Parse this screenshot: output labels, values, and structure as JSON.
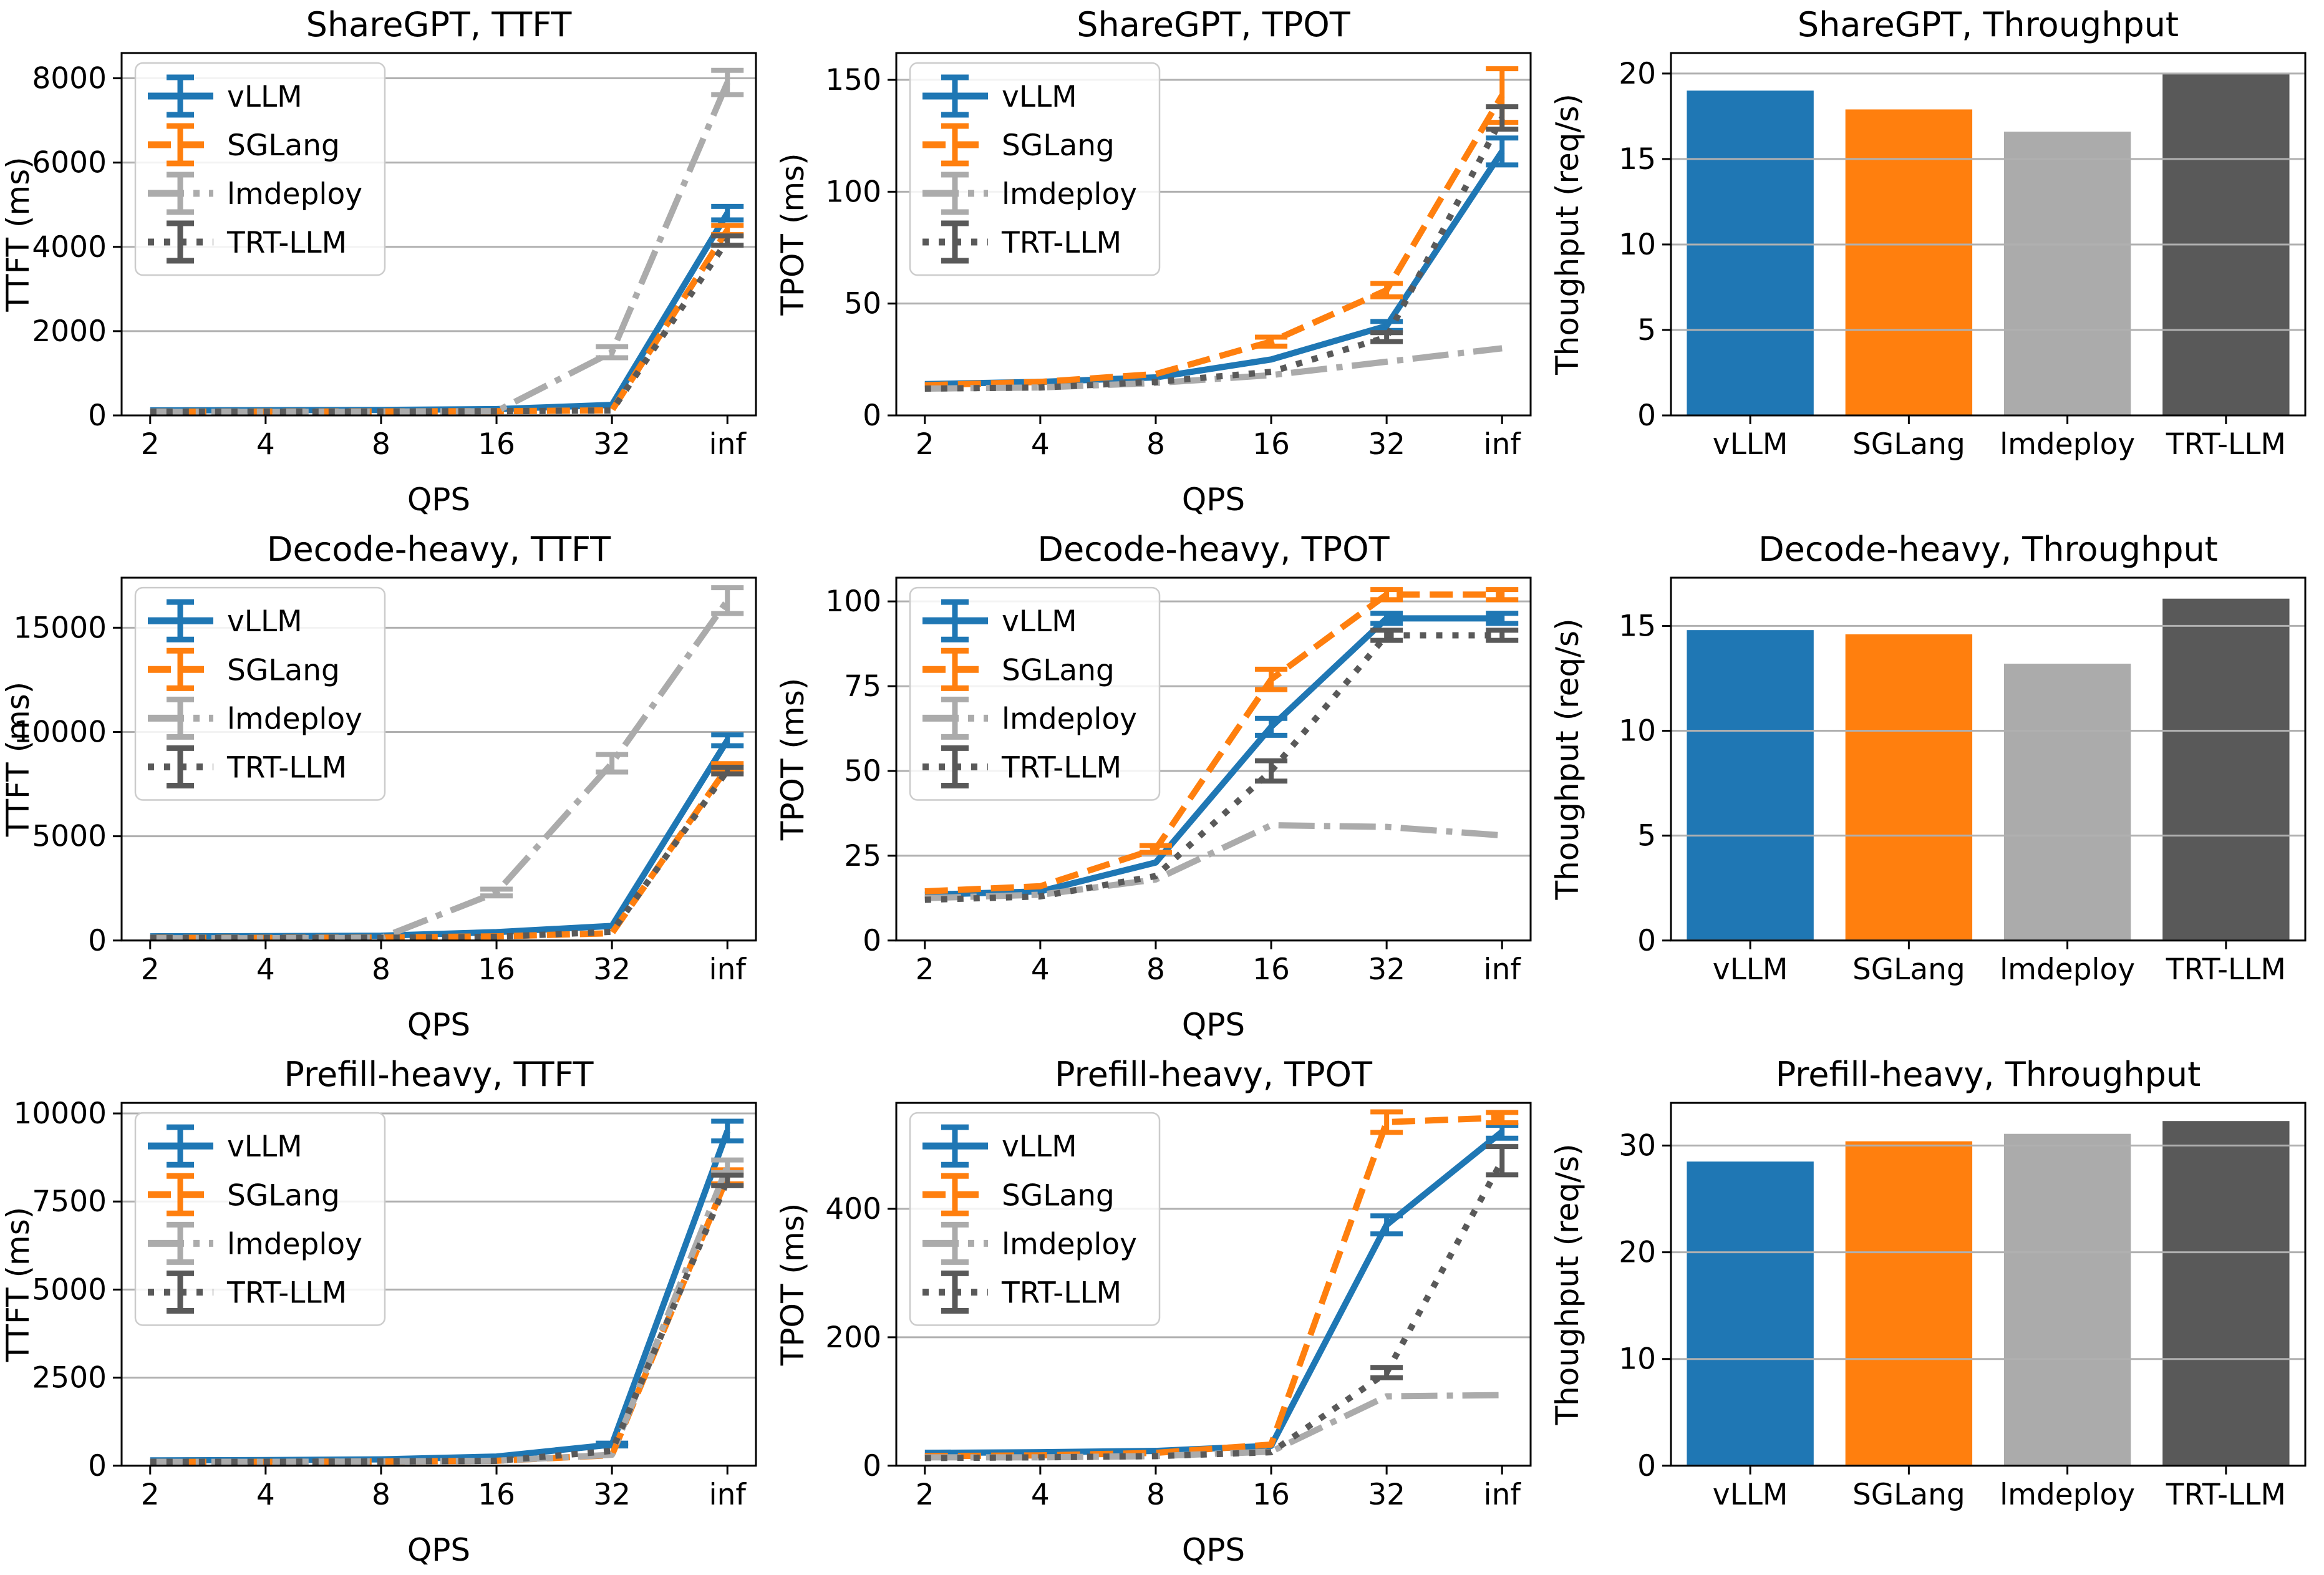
{
  "figure": {
    "background": "#ffffff"
  },
  "palette": {
    "vLLM": "#1f77b4",
    "SGLang": "#ff7f0e",
    "lmdeploy": "#ababab",
    "TRT-LLM": "#595959"
  },
  "styles": {
    "grid_color": "#b0b0b0",
    "spine_color": "#000000",
    "legend_border": "#cccccc",
    "legend_fill": "#ffffff",
    "dash": {
      "vLLM": "",
      "SGLang": "37 16",
      "lmdeploy": "58 15 10 15",
      "TRT-LLM": "10 16"
    }
  },
  "chart_data": [
    {
      "id": "sharegpt-ttft",
      "type": "line",
      "title": "ShareGPT, TTFT",
      "xlabel": "QPS",
      "ylabel": "TTFT (ms)",
      "x_ticklabels": [
        "2",
        "4",
        "8",
        "16",
        "32",
        "inf"
      ],
      "yticks": [
        0,
        2000,
        4000,
        6000,
        8000
      ],
      "ylim": [
        0,
        8600
      ],
      "grid": true,
      "legend_position": "upper-left",
      "legend": [
        "vLLM",
        "SGLang",
        "lmdeploy",
        "TRT-LLM"
      ],
      "series": [
        {
          "name": "vLLM",
          "values": [
            120,
            125,
            130,
            150,
            250,
            4800
          ],
          "errors": [
            0,
            0,
            0,
            0,
            0,
            160
          ]
        },
        {
          "name": "SGLang",
          "values": [
            90,
            92,
            95,
            100,
            120,
            4400
          ],
          "errors": [
            0,
            0,
            0,
            0,
            0,
            110
          ]
        },
        {
          "name": "lmdeploy",
          "values": [
            85,
            85,
            90,
            100,
            1500,
            7900
          ],
          "errors": [
            0,
            0,
            0,
            0,
            130,
            290
          ]
        },
        {
          "name": "TRT-LLM",
          "values": [
            88,
            88,
            92,
            100,
            115,
            4150
          ],
          "errors": [
            0,
            0,
            0,
            0,
            0,
            110
          ]
        }
      ]
    },
    {
      "id": "sharegpt-tpot",
      "type": "line",
      "title": "ShareGPT, TPOT",
      "xlabel": "QPS",
      "ylabel": "TPOT (ms)",
      "x_ticklabels": [
        "2",
        "4",
        "8",
        "16",
        "32",
        "inf"
      ],
      "yticks": [
        0,
        50,
        100,
        150
      ],
      "ylim": [
        0,
        162
      ],
      "grid": true,
      "legend_position": "upper-left",
      "legend": [
        "vLLM",
        "SGLang",
        "lmdeploy",
        "TRT-LLM"
      ],
      "series": [
        {
          "name": "vLLM",
          "values": [
            14,
            15,
            17,
            25,
            40,
            118
          ],
          "errors": [
            0,
            0,
            0,
            0,
            2,
            6
          ]
        },
        {
          "name": "SGLang",
          "values": [
            13.5,
            15,
            18.5,
            33,
            56,
            143
          ],
          "errors": [
            0,
            0,
            0,
            2,
            3,
            12
          ]
        },
        {
          "name": "lmdeploy",
          "values": [
            12,
            12.5,
            14.5,
            18,
            24,
            30
          ],
          "errors": [
            0,
            0,
            0,
            0,
            0,
            0
          ]
        },
        {
          "name": "TRT-LLM",
          "values": [
            12,
            12.5,
            15,
            19.5,
            35,
            133
          ],
          "errors": [
            0,
            0,
            0,
            0,
            2,
            5
          ]
        }
      ]
    },
    {
      "id": "sharegpt-throughput",
      "type": "bar",
      "title": "ShareGPT, Throughput",
      "xlabel": "",
      "ylabel": "Thoughput (req/s)",
      "categories": [
        "vLLM",
        "SGLang",
        "lmdeploy",
        "TRT-LLM"
      ],
      "values": [
        19.0,
        17.9,
        16.6,
        20.0
      ],
      "yticks": [
        0,
        5,
        10,
        15,
        20
      ],
      "ylim": [
        0,
        21.2
      ],
      "grid": true
    },
    {
      "id": "decode-heavy-ttft",
      "type": "line",
      "title": "Decode-heavy, TTFT",
      "xlabel": "QPS",
      "ylabel": "TTFT (ms)",
      "x_ticklabels": [
        "2",
        "4",
        "8",
        "16",
        "32",
        "inf"
      ],
      "yticks": [
        0,
        5000,
        10000,
        15000
      ],
      "ylim": [
        0,
        17400
      ],
      "grid": true,
      "legend_position": "upper-left",
      "legend": [
        "vLLM",
        "SGLang",
        "lmdeploy",
        "TRT-LLM"
      ],
      "series": [
        {
          "name": "vLLM",
          "values": [
            200,
            210,
            230,
            400,
            700,
            9600
          ],
          "errors": [
            0,
            0,
            0,
            0,
            0,
            260
          ]
        },
        {
          "name": "SGLang",
          "values": [
            130,
            130,
            140,
            200,
            350,
            8300
          ],
          "errors": [
            0,
            0,
            0,
            0,
            0,
            180
          ]
        },
        {
          "name": "lmdeploy",
          "values": [
            110,
            110,
            130,
            2300,
            8500,
            16300
          ],
          "errors": [
            0,
            0,
            0,
            160,
            420,
            620
          ]
        },
        {
          "name": "TRT-LLM",
          "values": [
            120,
            120,
            130,
            180,
            420,
            8150
          ],
          "errors": [
            0,
            0,
            0,
            0,
            0,
            160
          ]
        }
      ]
    },
    {
      "id": "decode-heavy-tpot",
      "type": "line",
      "title": "Decode-heavy, TPOT",
      "xlabel": "QPS",
      "ylabel": "TPOT (ms)",
      "x_ticklabels": [
        "2",
        "4",
        "8",
        "16",
        "32",
        "inf"
      ],
      "yticks": [
        0,
        25,
        50,
        75,
        100
      ],
      "ylim": [
        0,
        107
      ],
      "grid": true,
      "legend_position": "upper-left",
      "legend": [
        "vLLM",
        "SGLang",
        "lmdeploy",
        "TRT-LLM"
      ],
      "series": [
        {
          "name": "vLLM",
          "values": [
            13.5,
            14.5,
            23,
            63,
            95,
            95
          ],
          "errors": [
            0,
            0,
            0,
            2.5,
            1.5,
            1.5
          ]
        },
        {
          "name": "SGLang",
          "values": [
            14.5,
            16,
            27,
            77,
            102,
            102
          ],
          "errors": [
            0,
            0,
            1,
            3,
            1.5,
            1.5
          ]
        },
        {
          "name": "lmdeploy",
          "values": [
            12.5,
            13.5,
            18,
            34,
            33.5,
            31
          ],
          "errors": [
            0,
            0,
            0,
            0,
            0,
            0
          ]
        },
        {
          "name": "TRT-LLM",
          "values": [
            12,
            13,
            19,
            50,
            90,
            90
          ],
          "errors": [
            0,
            0,
            0,
            3,
            1.5,
            1.5
          ]
        }
      ]
    },
    {
      "id": "decode-heavy-throughput",
      "type": "bar",
      "title": "Decode-heavy, Throughput",
      "xlabel": "",
      "ylabel": "Thoughput (req/s)",
      "categories": [
        "vLLM",
        "SGLang",
        "lmdeploy",
        "TRT-LLM"
      ],
      "values": [
        14.8,
        14.6,
        13.2,
        16.3
      ],
      "yticks": [
        0,
        5,
        10,
        15
      ],
      "ylim": [
        0,
        17.3
      ],
      "grid": true
    },
    {
      "id": "prefill-heavy-ttft",
      "type": "line",
      "title": "Prefill-heavy, TTFT",
      "xlabel": "QPS",
      "ylabel": "TTFT (ms)",
      "x_ticklabels": [
        "2",
        "4",
        "8",
        "16",
        "32",
        "inf"
      ],
      "yticks": [
        0,
        2500,
        5000,
        7500,
        10000
      ],
      "ylim": [
        0,
        10300
      ],
      "grid": true,
      "legend_position": "upper-left",
      "legend": [
        "vLLM",
        "SGLang",
        "lmdeploy",
        "TRT-LLM"
      ],
      "series": [
        {
          "name": "vLLM",
          "values": [
            150,
            160,
            180,
            260,
            600,
            9500
          ],
          "errors": [
            0,
            0,
            0,
            0,
            40,
            280
          ]
        },
        {
          "name": "SGLang",
          "values": [
            110,
            110,
            120,
            140,
            300,
            8200
          ],
          "errors": [
            0,
            0,
            0,
            0,
            0,
            200
          ]
        },
        {
          "name": "lmdeploy",
          "values": [
            110,
            110,
            120,
            140,
            310,
            8500
          ],
          "errors": [
            0,
            0,
            0,
            0,
            0,
            180
          ]
        },
        {
          "name": "TRT-LLM",
          "values": [
            110,
            110,
            120,
            140,
            420,
            8100
          ],
          "errors": [
            0,
            0,
            0,
            0,
            0,
            150
          ]
        }
      ]
    },
    {
      "id": "prefill-heavy-tpot",
      "type": "line",
      "title": "Prefill-heavy, TPOT",
      "xlabel": "QPS",
      "ylabel": "TPOT (ms)",
      "x_ticklabels": [
        "2",
        "4",
        "8",
        "16",
        "32",
        "inf"
      ],
      "yticks": [
        0,
        200,
        400
      ],
      "ylim": [
        0,
        565
      ],
      "grid": true,
      "legend_position": "upper-left",
      "legend": [
        "vLLM",
        "SGLang",
        "lmdeploy",
        "TRT-LLM"
      ],
      "series": [
        {
          "name": "vLLM",
          "values": [
            20,
            21,
            23,
            31,
            375,
            520
          ],
          "errors": [
            0,
            0,
            0,
            0,
            14,
            10
          ]
        },
        {
          "name": "SGLang",
          "values": [
            15,
            16,
            20,
            33,
            535,
            542
          ],
          "errors": [
            0,
            0,
            0,
            0,
            16,
            8
          ]
        },
        {
          "name": "lmdeploy",
          "values": [
            13,
            13,
            15,
            22,
            108,
            110
          ],
          "errors": [
            0,
            0,
            0,
            0,
            0,
            0
          ]
        },
        {
          "name": "TRT-LLM",
          "values": [
            12,
            13,
            15,
            21,
            145,
            475
          ],
          "errors": [
            0,
            0,
            0,
            0,
            8,
            22
          ]
        }
      ]
    },
    {
      "id": "prefill-heavy-throughput",
      "type": "bar",
      "title": "Prefill-heavy, Throughput",
      "xlabel": "",
      "ylabel": "Thoughput (req/s)",
      "categories": [
        "vLLM",
        "SGLang",
        "lmdeploy",
        "TRT-LLM"
      ],
      "values": [
        28.5,
        30.4,
        31.1,
        32.3
      ],
      "yticks": [
        0,
        10,
        20,
        30
      ],
      "ylim": [
        0,
        34
      ],
      "grid": true
    }
  ]
}
